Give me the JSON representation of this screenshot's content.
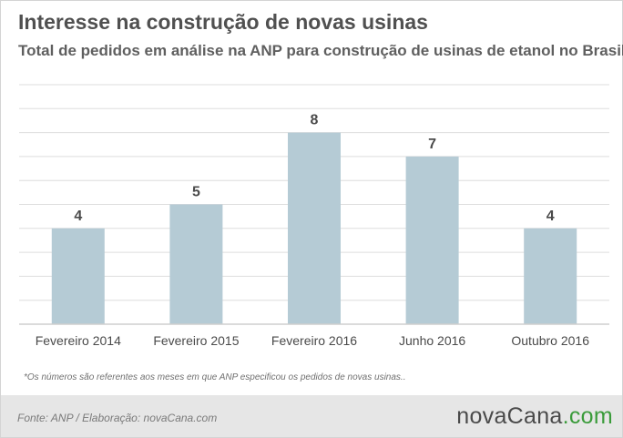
{
  "header": {
    "title": "Interesse na construção de novas usinas",
    "subtitle": "Total de pedidos em análise na ANP para construção de usinas de etanol no Brasil"
  },
  "note": "*Os números são referentes aos meses em que ANP especificou os pedidos de novas usinas..",
  "footer": {
    "source": "Fonte: ANP / Elaboração: novaCana.com",
    "brand_name": "novaCana",
    "brand_domain": ".com"
  },
  "colors": {
    "bar": "#b5cbd5",
    "gridline": "#dedede",
    "axis": "#cfcfcf",
    "value_label": "#4a4a4a",
    "tick_label": "#4a4a4a",
    "brand_domain": "#3a9b3a"
  },
  "chart_data": {
    "type": "bar",
    "title": "Interesse na construção de novas usinas",
    "subtitle": "Total de pedidos em análise na ANP para construção de usinas de etanol no Brasil",
    "categories": [
      "Fevereiro 2014",
      "Fevereiro 2015",
      "Fevereiro 2016",
      "Junho 2016",
      "Outubro 2016"
    ],
    "values": [
      4,
      5,
      8,
      7,
      4
    ],
    "data_labels": [
      "4",
      "5",
      "8",
      "7",
      "4"
    ],
    "xlabel": "",
    "ylabel": "",
    "ylim": [
      0,
      10
    ],
    "grid": true,
    "legend": "none"
  }
}
